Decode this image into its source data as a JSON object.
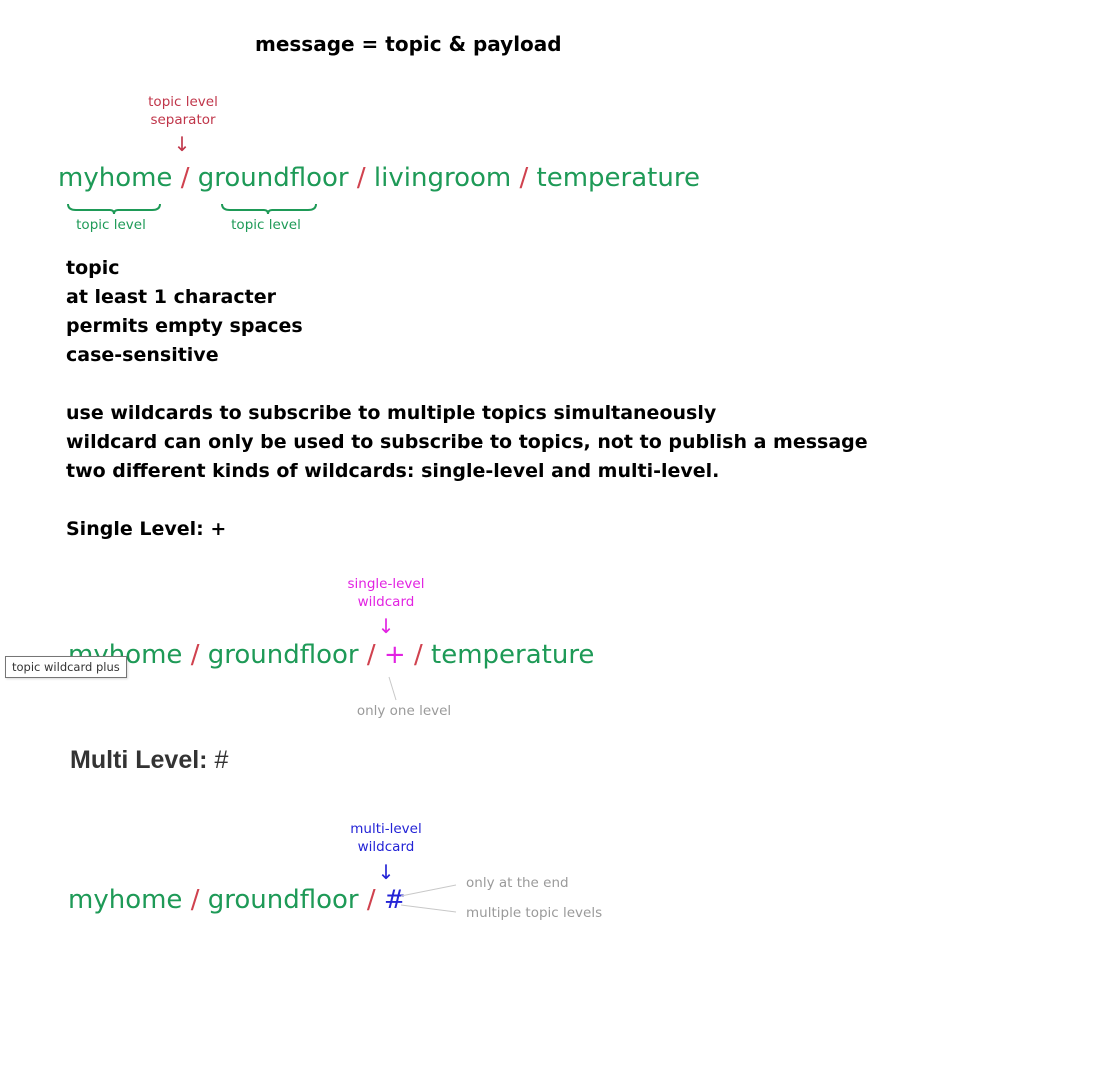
{
  "title": "message = topic & payload",
  "diagram1": {
    "separator_label_1": "topic level",
    "separator_label_2": "separator",
    "arrow": "↓",
    "levels": [
      "myhome",
      "groundfloor",
      "livingroom",
      "temperature"
    ],
    "separator": "/",
    "level_label_1": "topic level",
    "level_label_2": "topic level"
  },
  "topic_rules": [
    "topic",
    "at least 1 character",
    "permits empty spaces",
    "case-sensitive"
  ],
  "wildcard_rules": [
    "use wildcards to subscribe to multiple topics simultaneously",
    "wildcard can only be used to subscribe to topics, not to publish a message",
    "two different kinds of wildcards: single-level and multi-level."
  ],
  "single_level_heading": "Single Level: +",
  "diagram2": {
    "label_1": "single-level",
    "label_2": "wildcard",
    "arrow": "↓",
    "level_1": "myhome",
    "level_2": "groundfloor",
    "wildcard": "+",
    "level_3": "temperature",
    "separator": "/",
    "note": "only one level",
    "tooltip": "topic wildcard plus"
  },
  "multi_level_heading": {
    "label": "Multi Level:",
    "symbol": "#"
  },
  "diagram3": {
    "label_1": "multi-level",
    "label_2": "wildcard",
    "arrow": "↓",
    "level_1": "myhome",
    "level_2": "groundfloor",
    "wildcard": "#",
    "separator": "/",
    "note_1": "only at the end",
    "note_2": "multiple topic levels"
  }
}
